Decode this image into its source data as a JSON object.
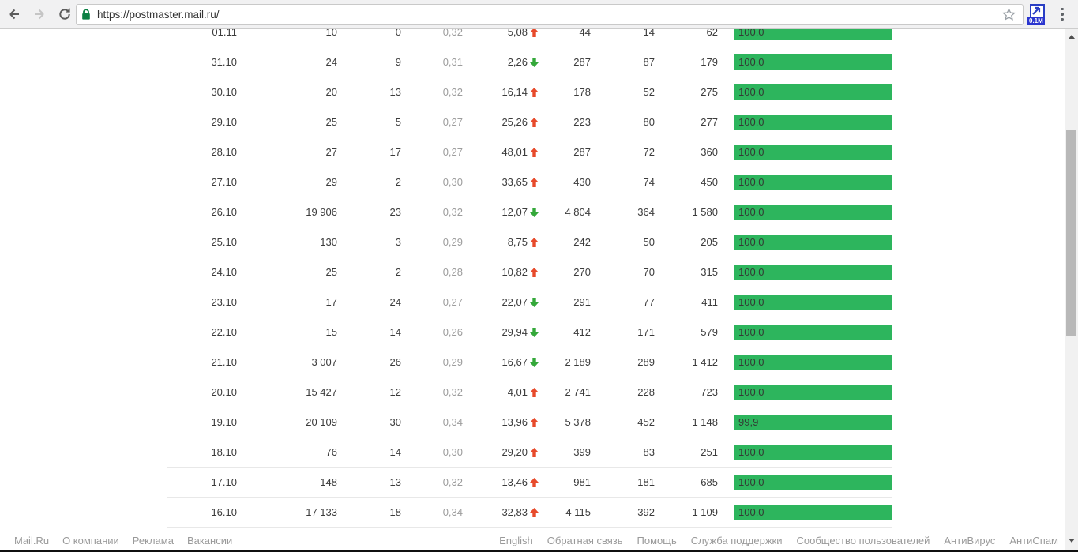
{
  "browser": {
    "url": "https://postmaster.mail.ru/",
    "extension_badge": "0.1M"
  },
  "colors": {
    "bar_green": "#2db55d",
    "up_arrow": "#e74a2b",
    "down_arrow": "#34a83a"
  },
  "table": {
    "rows": [
      {
        "date": "01.11",
        "c2": "10",
        "c3": "0",
        "c4": "0,32",
        "c5": "5,08",
        "trend": "up",
        "c6": "44",
        "c7": "14",
        "c8": "62",
        "bar": "100,0",
        "bar_pct": 100
      },
      {
        "date": "31.10",
        "c2": "24",
        "c3": "9",
        "c4": "0,31",
        "c5": "2,26",
        "trend": "down",
        "c6": "287",
        "c7": "87",
        "c8": "179",
        "bar": "100,0",
        "bar_pct": 100
      },
      {
        "date": "30.10",
        "c2": "20",
        "c3": "13",
        "c4": "0,32",
        "c5": "16,14",
        "trend": "up",
        "c6": "178",
        "c7": "52",
        "c8": "275",
        "bar": "100,0",
        "bar_pct": 100
      },
      {
        "date": "29.10",
        "c2": "25",
        "c3": "5",
        "c4": "0,27",
        "c5": "25,26",
        "trend": "up",
        "c6": "223",
        "c7": "80",
        "c8": "277",
        "bar": "100,0",
        "bar_pct": 100
      },
      {
        "date": "28.10",
        "c2": "27",
        "c3": "17",
        "c4": "0,27",
        "c5": "48,01",
        "trend": "up",
        "c6": "287",
        "c7": "72",
        "c8": "360",
        "bar": "100,0",
        "bar_pct": 100
      },
      {
        "date": "27.10",
        "c2": "29",
        "c3": "2",
        "c4": "0,30",
        "c5": "33,65",
        "trend": "up",
        "c6": "430",
        "c7": "74",
        "c8": "450",
        "bar": "100,0",
        "bar_pct": 100
      },
      {
        "date": "26.10",
        "c2": "19 906",
        "c3": "23",
        "c4": "0,32",
        "c5": "12,07",
        "trend": "down",
        "c6": "4 804",
        "c7": "364",
        "c8": "1 580",
        "bar": "100,0",
        "bar_pct": 100
      },
      {
        "date": "25.10",
        "c2": "130",
        "c3": "3",
        "c4": "0,29",
        "c5": "8,75",
        "trend": "up",
        "c6": "242",
        "c7": "50",
        "c8": "205",
        "bar": "100,0",
        "bar_pct": 100
      },
      {
        "date": "24.10",
        "c2": "25",
        "c3": "2",
        "c4": "0,28",
        "c5": "10,82",
        "trend": "up",
        "c6": "270",
        "c7": "70",
        "c8": "315",
        "bar": "100,0",
        "bar_pct": 100
      },
      {
        "date": "23.10",
        "c2": "17",
        "c3": "24",
        "c4": "0,27",
        "c5": "22,07",
        "trend": "down",
        "c6": "291",
        "c7": "77",
        "c8": "411",
        "bar": "100,0",
        "bar_pct": 100
      },
      {
        "date": "22.10",
        "c2": "15",
        "c3": "14",
        "c4": "0,26",
        "c5": "29,94",
        "trend": "down",
        "c6": "412",
        "c7": "171",
        "c8": "579",
        "bar": "100,0",
        "bar_pct": 100
      },
      {
        "date": "21.10",
        "c2": "3 007",
        "c3": "26",
        "c4": "0,29",
        "c5": "16,67",
        "trend": "down",
        "c6": "2 189",
        "c7": "289",
        "c8": "1 412",
        "bar": "100,0",
        "bar_pct": 100
      },
      {
        "date": "20.10",
        "c2": "15 427",
        "c3": "12",
        "c4": "0,32",
        "c5": "4,01",
        "trend": "up",
        "c6": "2 741",
        "c7": "228",
        "c8": "723",
        "bar": "100,0",
        "bar_pct": 100
      },
      {
        "date": "19.10",
        "c2": "20 109",
        "c3": "30",
        "c4": "0,34",
        "c5": "13,96",
        "trend": "up",
        "c6": "5 378",
        "c7": "452",
        "c8": "1 148",
        "bar": "99,9",
        "bar_pct": 99.9
      },
      {
        "date": "18.10",
        "c2": "76",
        "c3": "14",
        "c4": "0,30",
        "c5": "29,20",
        "trend": "up",
        "c6": "399",
        "c7": "83",
        "c8": "251",
        "bar": "100,0",
        "bar_pct": 100
      },
      {
        "date": "17.10",
        "c2": "148",
        "c3": "13",
        "c4": "0,32",
        "c5": "13,46",
        "trend": "up",
        "c6": "981",
        "c7": "181",
        "c8": "685",
        "bar": "100,0",
        "bar_pct": 100
      },
      {
        "date": "16.10",
        "c2": "17 133",
        "c3": "18",
        "c4": "0,34",
        "c5": "32,83",
        "trend": "up",
        "c6": "4 115",
        "c7": "392",
        "c8": "1 109",
        "bar": "100,0",
        "bar_pct": 100
      }
    ]
  },
  "footer": {
    "left_links": [
      "Mail.Ru",
      "О компании",
      "Реклама",
      "Вакансии"
    ],
    "right_links": [
      "English",
      "Обратная связь",
      "Помощь",
      "Служба поддержки",
      "Сообщество пользователей",
      "АнтиВирус",
      "АнтиСпам"
    ]
  }
}
